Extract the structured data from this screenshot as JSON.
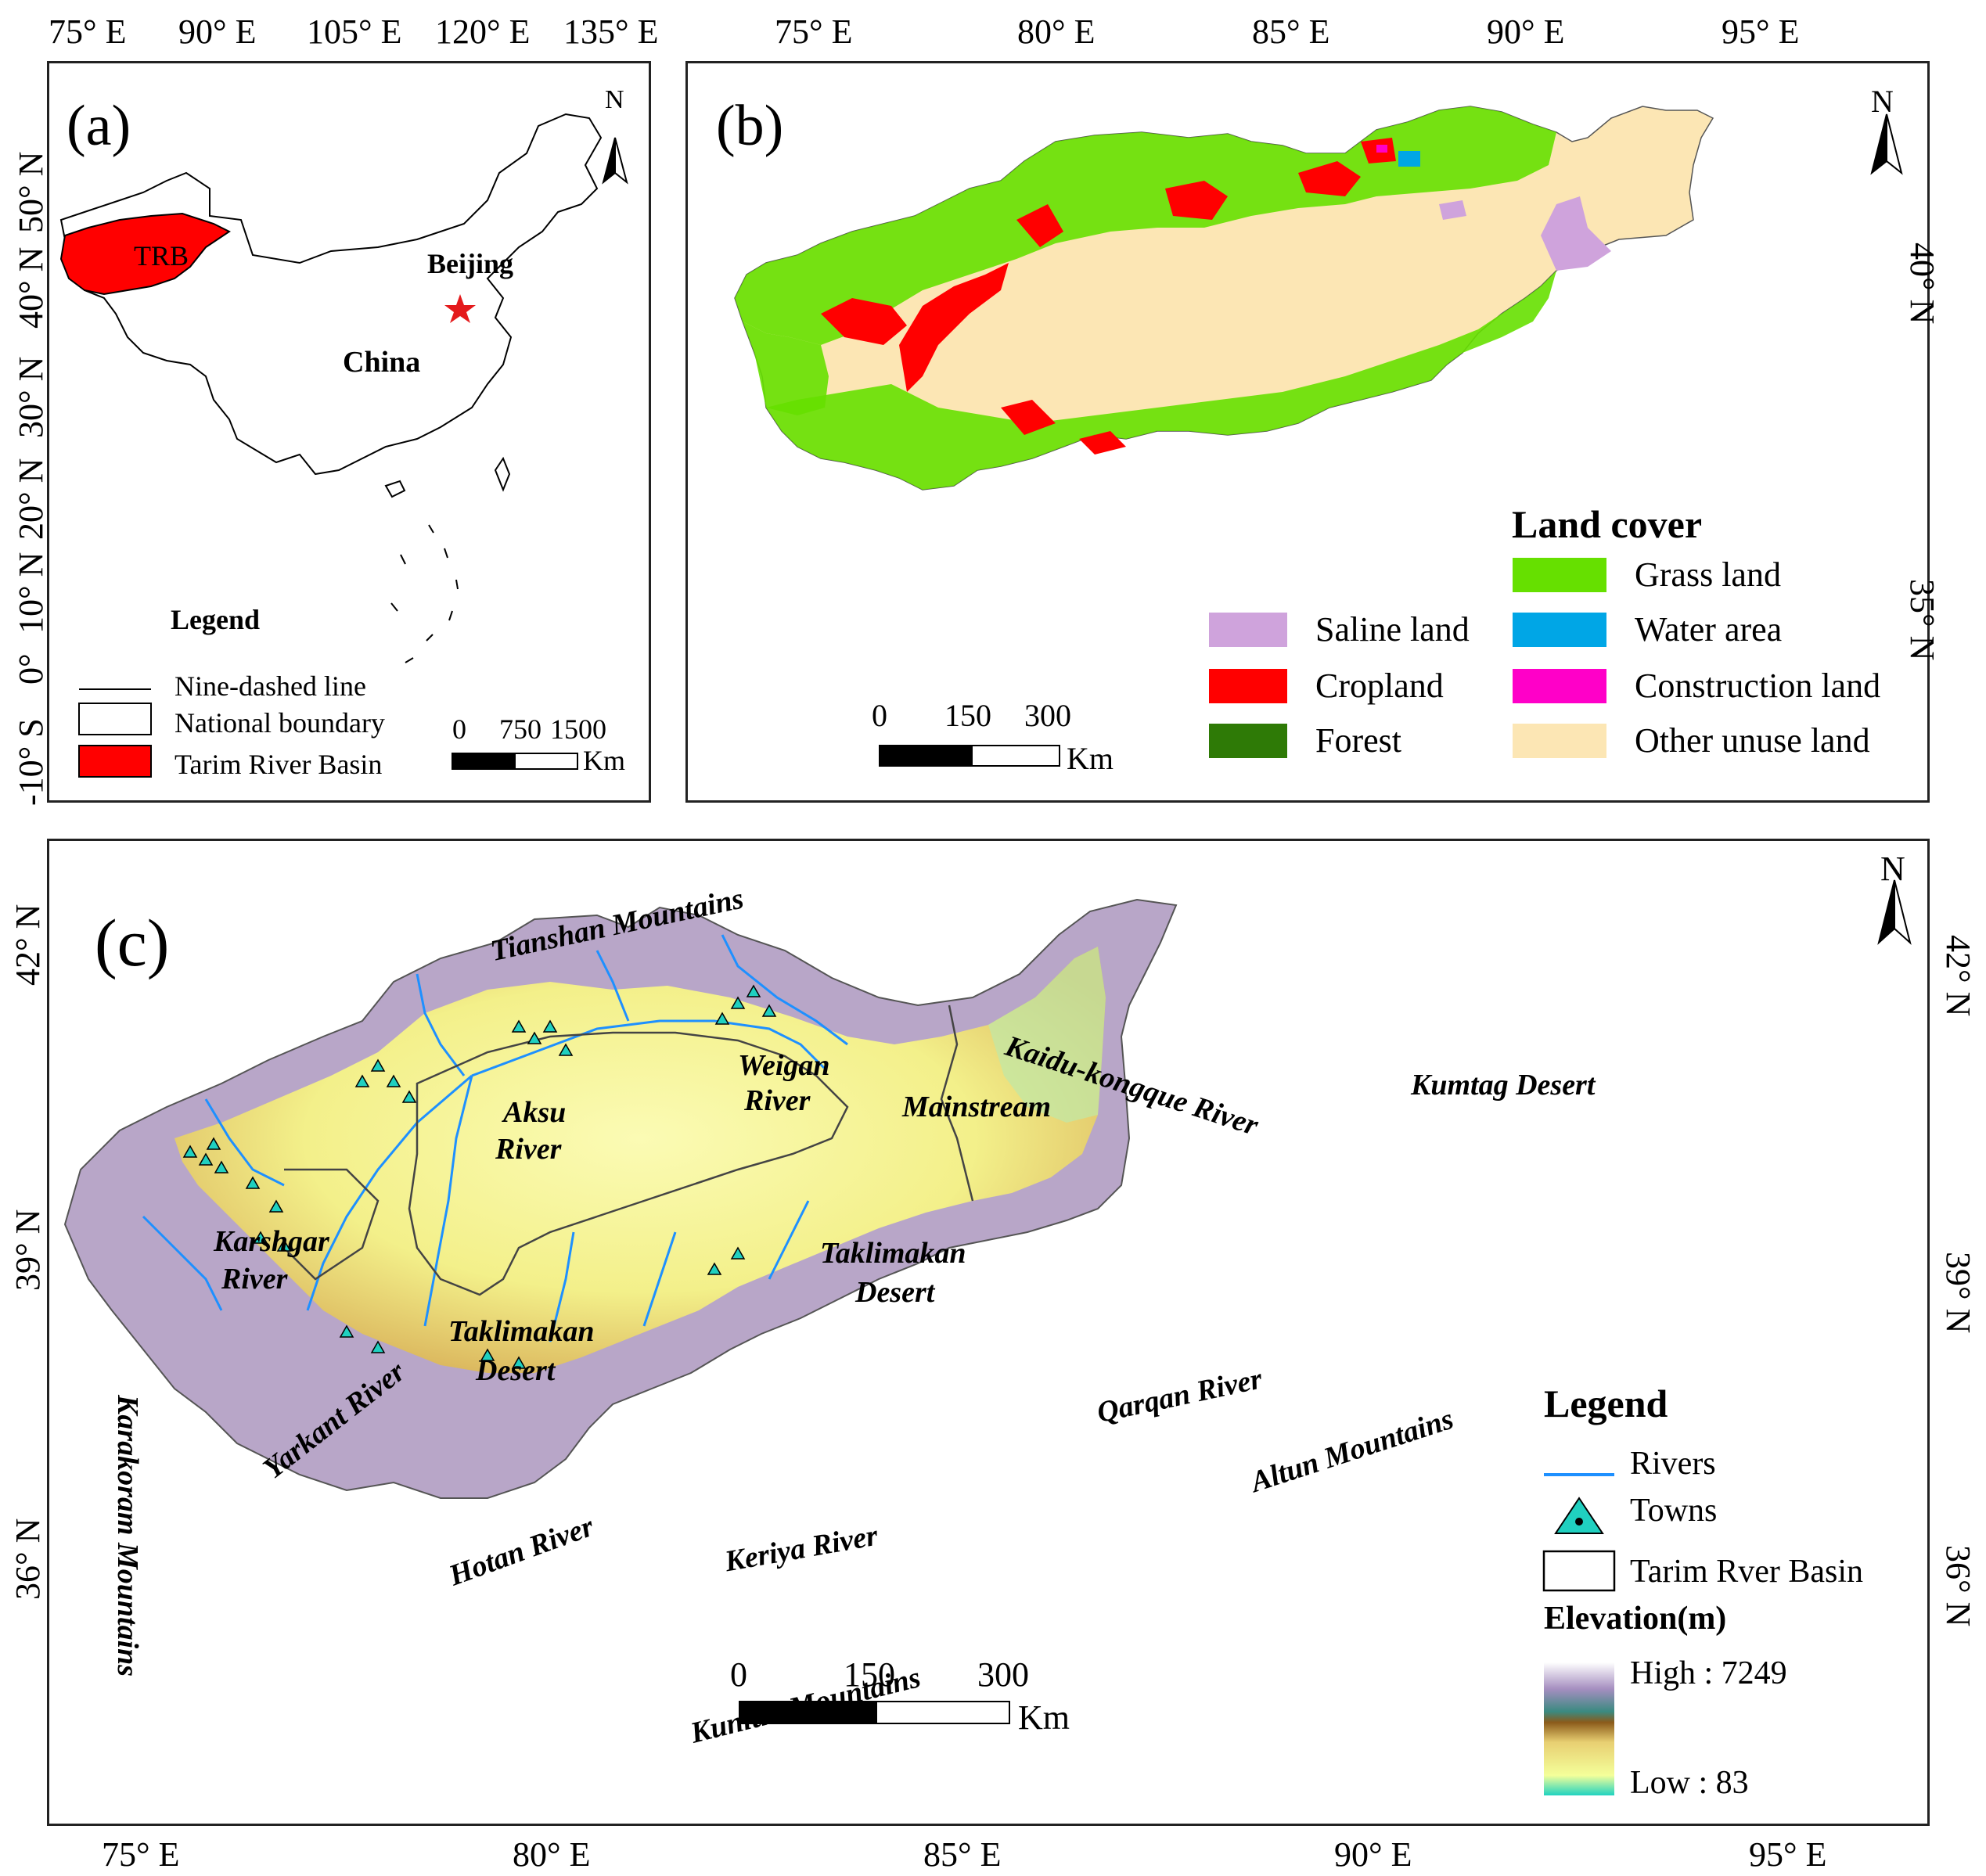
{
  "panel_a": {
    "label": "(a)",
    "lon_ticks": [
      "75° E",
      "90° E",
      "105° E",
      "120° E",
      "135° E"
    ],
    "lat_ticks": [
      "50° N",
      "40° N",
      "30° N",
      "20° N",
      "10° N",
      "0°",
      "-10° S"
    ],
    "north": "N",
    "trb_label": "TRB",
    "beijing_label": "Beijing",
    "china_label": "China",
    "legend_title": "Legend",
    "legend_items": [
      "Nine-dashed line",
      "National boundary",
      "Tarim River Basin"
    ],
    "scale_ticks": [
      "0",
      "750",
      "1500"
    ],
    "scale_unit": "Km",
    "colors": {
      "trb": "#ff0000",
      "beijing_star": "#e41a1c"
    }
  },
  "panel_b": {
    "label": "(b)",
    "lon_ticks": [
      "75° E",
      "80° E",
      "85° E",
      "90° E",
      "95° E"
    ],
    "lat_ticks": [
      "40° N",
      "35° N"
    ],
    "north": "N",
    "legend_title": "Land cover",
    "legend_items": [
      {
        "label": "Grass land",
        "color": "#66e000"
      },
      {
        "label": "Water area",
        "color": "#00a6e6"
      },
      {
        "label": "Construction land",
        "color": "#ff00c8"
      },
      {
        "label": "Other unuse  land",
        "color": "#fce6b4"
      },
      {
        "label": "Saline land",
        "color": "#cfa3dc"
      },
      {
        "label": "Cropland",
        "color": "#ff0000"
      },
      {
        "label": "Forest",
        "color": "#2e7a06"
      }
    ],
    "scale_ticks": [
      "0",
      "150",
      "300"
    ],
    "scale_unit": "Km"
  },
  "panel_c": {
    "label": "(c)",
    "lon_ticks": [
      "75° E",
      "80° E",
      "85° E",
      "90° E",
      "95° E"
    ],
    "lat_ticks": [
      "42° N",
      "39° N",
      "36° N"
    ],
    "north": "N",
    "places": [
      "Tianshan Mountains",
      "Weigan",
      "River",
      "Kaidu-kongque River",
      "Aksu",
      "River",
      "Mainstream",
      "Kumtag Desert",
      "Karshgar",
      "River",
      "Taklimakan",
      "Desert",
      "Taklimakan",
      "Desert",
      "Yarkant River",
      "Qarqan River",
      "Altun Mountains",
      "Hotan River",
      "Keriya River",
      "Kunlun Mountains",
      "Karakoram Mountains"
    ],
    "legend_title": "Legend",
    "legend_items": [
      "Rivers",
      "Towns",
      "Tarim Rver Basin"
    ],
    "elevation_title": "Elevation(m)",
    "elev_high": "High : 7249",
    "elev_low": "Low : 83",
    "scale_ticks": [
      "0",
      "150",
      "300"
    ],
    "scale_unit": "Km",
    "colors": {
      "river": "#1e90ff",
      "town": "#20d0c0",
      "elev_gradient": [
        "#9fdfcf",
        "#ffff80",
        "#e6d77a",
        "#8b5a1a",
        "#2e8a8a",
        "#a08ab8",
        "#ffffff"
      ]
    }
  }
}
